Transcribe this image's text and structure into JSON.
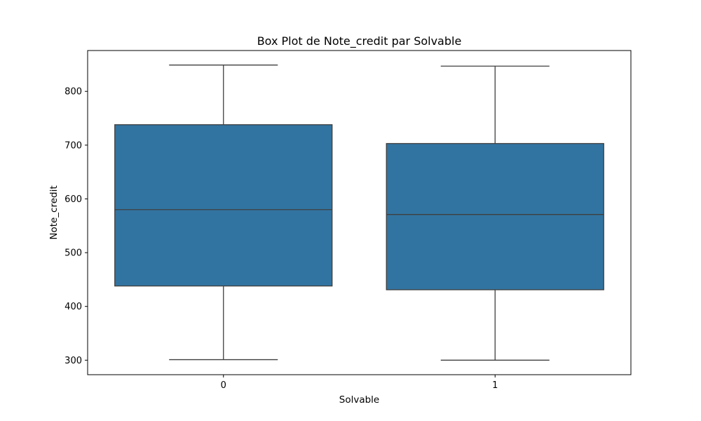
{
  "chart_data": {
    "type": "box",
    "title": "Box Plot de Note_credit par Solvable",
    "xlabel": "Solvable",
    "ylabel": "Note_credit",
    "categories": [
      "0",
      "1"
    ],
    "boxes": [
      {
        "category": "0",
        "whisker_low": 301,
        "q1": 438,
        "median": 580,
        "q3": 738,
        "whisker_high": 849
      },
      {
        "category": "1",
        "whisker_low": 300,
        "q1": 431,
        "median": 571,
        "q3": 703,
        "whisker_high": 847
      }
    ],
    "ylim": [
      273,
      876
    ],
    "yticks": [
      300,
      400,
      500,
      600,
      700,
      800
    ],
    "grid": false,
    "box_color": "#3274a1",
    "line_color": "#3f3f3f"
  }
}
